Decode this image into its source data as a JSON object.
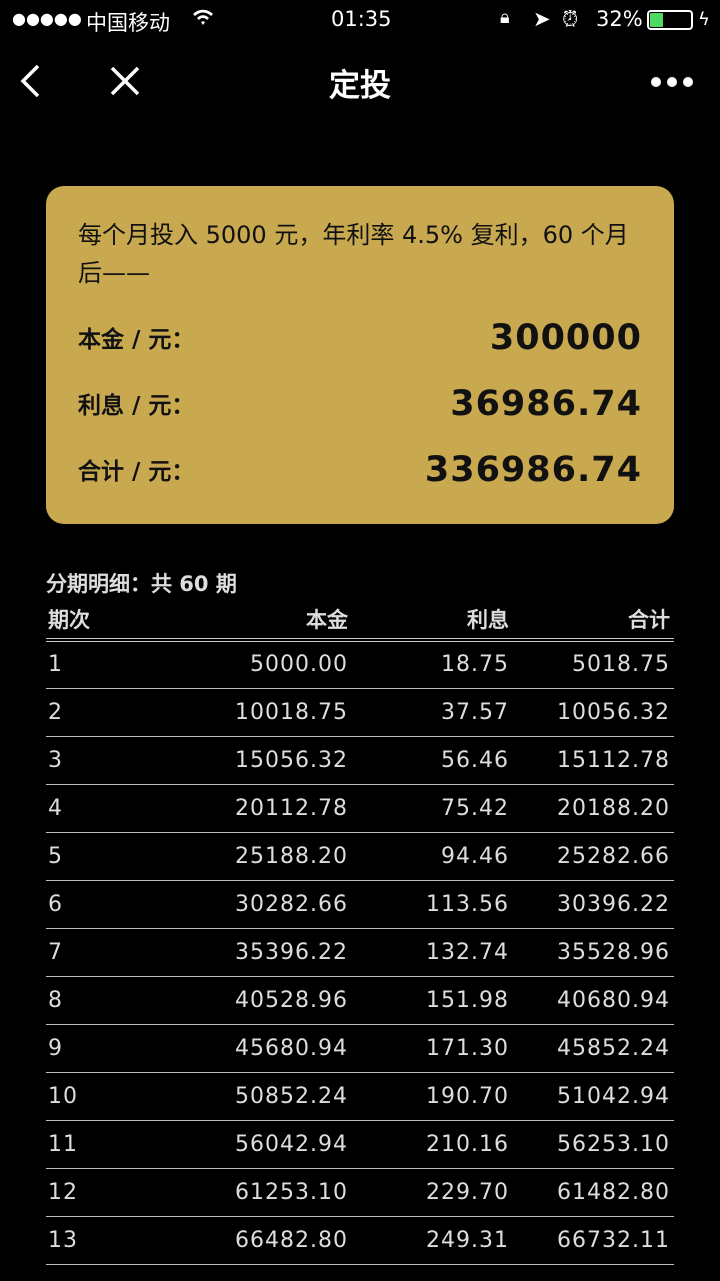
{
  "status_bar": {
    "signal": "●●●●●",
    "carrier": "中国移动",
    "time": "01:35",
    "battery": "32%",
    "battery_level": 0.32,
    "battery_color": "#4cd964"
  },
  "nav": {
    "title": "定投",
    "back_icon": "chevron-left-icon",
    "close_icon": "close-icon",
    "more_icon": "more-icon"
  },
  "summary": {
    "description": "每个月投入 5000 元，年利率 4.5% 复利，60 个月后——",
    "principal_label": "本金 / 元：",
    "principal": "300000",
    "interest_label": "利息 / 元：",
    "interest": "36986.74",
    "total_label": "合计 / 元：",
    "total": "336986.74",
    "card_color": "#c9a94f"
  },
  "schedule": {
    "title": "分期明细：共 60 期",
    "headers": [
      "期次",
      "本金",
      "利息",
      "合计"
    ],
    "rows": [
      [
        "1",
        "5000.00",
        "18.75",
        "5018.75"
      ],
      [
        "2",
        "10018.75",
        "37.57",
        "10056.32"
      ],
      [
        "3",
        "15056.32",
        "56.46",
        "15112.78"
      ],
      [
        "4",
        "20112.78",
        "75.42",
        "20188.20"
      ],
      [
        "5",
        "25188.20",
        "94.46",
        "25282.66"
      ],
      [
        "6",
        "30282.66",
        "113.56",
        "30396.22"
      ],
      [
        "7",
        "35396.22",
        "132.74",
        "35528.96"
      ],
      [
        "8",
        "40528.96",
        "151.98",
        "40680.94"
      ],
      [
        "9",
        "45680.94",
        "171.30",
        "45852.24"
      ],
      [
        "10",
        "50852.24",
        "190.70",
        "51042.94"
      ],
      [
        "11",
        "56042.94",
        "210.16",
        "56253.10"
      ],
      [
        "12",
        "61253.10",
        "229.70",
        "61482.80"
      ],
      [
        "13",
        "66482.80",
        "249.31",
        "66732.11"
      ]
    ]
  }
}
